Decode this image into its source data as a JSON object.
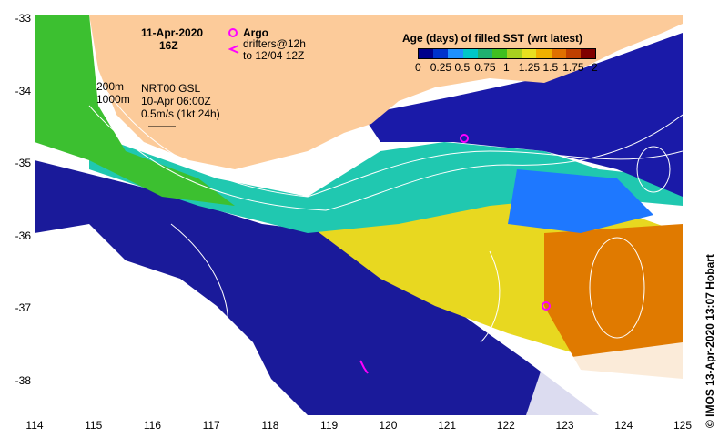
{
  "map": {
    "date_title": "11-Apr-2020",
    "hour_title": "16Z",
    "argo_label": "Argo",
    "drifters_line1": "drifters@12h",
    "drifters_line2": "to 12/04 12Z",
    "contour_200": "200m",
    "contour_1000": "1000m",
    "product_line1": "NRT00 GSL",
    "product_line2": "10-Apr 06:00Z",
    "product_line3": "0.5m/s (1kt 24h)",
    "credit": "© IMOS 13-Apr-2020 13:07 Hobart",
    "land_color": "#FCCB9A",
    "no_data_color": "#FFFFFF",
    "marker_color": "#FF00FF"
  },
  "legend": {
    "title": "Age (days) of filled SST (wrt latest)",
    "tick_labels": [
      "0",
      "0.25",
      "0.5",
      "0.75",
      "1",
      "1.25",
      "1.5",
      "1.75",
      "2"
    ],
    "colors": [
      "#00008B",
      "#0033CC",
      "#1E90FF",
      "#00C8C8",
      "#20B070",
      "#40C020",
      "#A8D020",
      "#E8E020",
      "#F0B000",
      "#E07000",
      "#C04000",
      "#800000"
    ]
  },
  "axes": {
    "y_ticks": [
      "-33",
      "-34",
      "-35",
      "-36",
      "-37",
      "-38"
    ],
    "x_ticks": [
      "114",
      "115",
      "116",
      "117",
      "118",
      "119",
      "120",
      "121",
      "122",
      "123",
      "124",
      "125"
    ],
    "lon_range": [
      114,
      125
    ],
    "lat_range": [
      -38.5,
      -33
    ]
  }
}
